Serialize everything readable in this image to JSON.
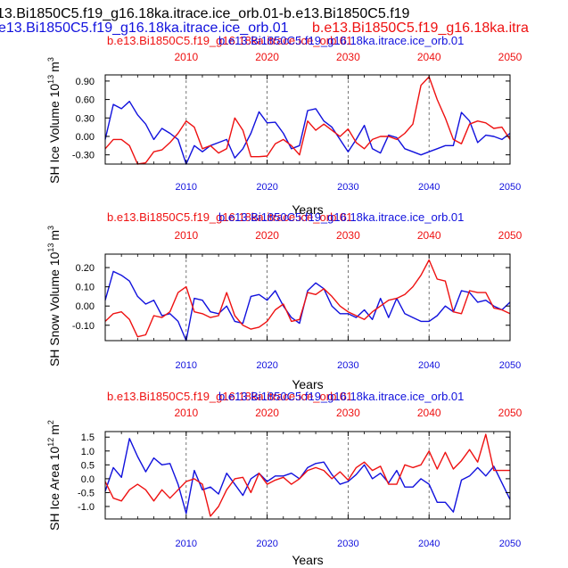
{
  "figure": {
    "header_black": "13.Bi1850C5.f19_g16.18ka.itrace.ice_orb.01-b.e13.Bi1850C5.f19",
    "header_blue": "e13.Bi1850C5.f19_g16.18ka.itrace.ice_orb.01",
    "header_red": "b.e13.Bi1850C5.f19_g16.18ka.itra"
  },
  "colors": {
    "red": "#ee1111",
    "blue": "#1111dd",
    "black": "#000000",
    "grid": "#555555"
  },
  "chart_data": [
    {
      "type": "line",
      "title_red": "b.e13.Bi1850C5.f19_g16.18ka.itrace.ice_orb.01",
      "title_blue": "b.e13.Bi1850C5.f19_g16.18ka.itrace.ice_orb.01",
      "ylabel": "SH Ice Volume 10^13 m^3",
      "ylabel_main": "SH Ice Volume 10",
      "ylabel_exp": "13",
      "ylabel_unit": "m",
      "ylabel_unit_exp": "3",
      "xlabel": "Years",
      "xlim": [
        2000,
        2050
      ],
      "ylim": [
        -0.45,
        1.0
      ],
      "yticks": [
        "0.90",
        "0.60",
        "0.30",
        "0.00",
        "-0.30"
      ],
      "ytick_values": [
        0.9,
        0.6,
        0.3,
        0.0,
        -0.3
      ],
      "xtick_values": [
        2010,
        2020,
        2030,
        2040,
        2050
      ],
      "xticks_bottom": [
        "2010",
        "2020",
        "2030",
        "2040",
        "2050"
      ],
      "xticks_top": [
        "2010",
        "2020",
        "2030",
        "2040",
        "2050"
      ],
      "gridlines_x": [
        2010,
        2020,
        2030,
        2040
      ],
      "x": [
        2000,
        2001,
        2002,
        2003,
        2004,
        2005,
        2006,
        2007,
        2008,
        2009,
        2010,
        2011,
        2012,
        2013,
        2014,
        2015,
        2016,
        2017,
        2018,
        2019,
        2020,
        2021,
        2022,
        2023,
        2024,
        2025,
        2026,
        2027,
        2028,
        2029,
        2030,
        2031,
        2032,
        2033,
        2034,
        2035,
        2036,
        2037,
        2038,
        2039,
        2040,
        2041,
        2042,
        2043,
        2044,
        2045,
        2046,
        2047,
        2048,
        2049,
        2050
      ],
      "series": [
        {
          "name": "blue",
          "color": "blue",
          "values": [
            -0.05,
            0.52,
            0.45,
            0.57,
            0.35,
            0.2,
            -0.05,
            0.13,
            0.05,
            -0.05,
            -0.45,
            -0.15,
            -0.25,
            -0.15,
            -0.1,
            -0.05,
            -0.35,
            -0.2,
            0.05,
            0.4,
            0.22,
            0.23,
            0.05,
            -0.2,
            -0.15,
            0.42,
            0.45,
            0.25,
            0.15,
            -0.05,
            -0.25,
            -0.05,
            0.18,
            -0.2,
            -0.27,
            0.02,
            -0.02,
            -0.2,
            -0.25,
            -0.3,
            -0.25,
            -0.2,
            -0.15,
            -0.15,
            0.39,
            0.25,
            -0.1,
            0.02,
            0.0,
            -0.05,
            0.05
          ]
        },
        {
          "name": "red",
          "color": "red",
          "values": [
            -0.2,
            -0.05,
            -0.05,
            -0.15,
            -0.45,
            -0.43,
            -0.25,
            -0.22,
            -0.1,
            0.05,
            0.25,
            0.15,
            -0.2,
            -0.15,
            -0.27,
            -0.2,
            0.3,
            0.1,
            -0.33,
            -0.33,
            -0.32,
            -0.12,
            -0.05,
            -0.15,
            -0.3,
            0.25,
            0.1,
            0.2,
            0.1,
            0.0,
            0.12,
            -0.1,
            -0.2,
            -0.05,
            0.0,
            0.0,
            -0.05,
            0.05,
            0.2,
            0.83,
            0.97,
            0.6,
            0.3,
            -0.05,
            -0.12,
            0.2,
            0.25,
            0.22,
            0.13,
            0.15,
            -0.05
          ]
        }
      ]
    },
    {
      "type": "line",
      "title_red": "b.e13.Bi1850C5.f19_g16.18ka.itrace.ice_orb.01",
      "title_blue": "b.e13.Bi1850C5.f19_g16.18ka.itrace.ice_orb.01",
      "ylabel": "SH Snow Volume 10^13 m^3",
      "ylabel_main": "SH Snow Volume 10",
      "ylabel_exp": "13",
      "ylabel_unit": "m",
      "ylabel_unit_exp": "3",
      "xlabel": "Years",
      "xlim": [
        2000,
        2050
      ],
      "ylim": [
        -0.18,
        0.27
      ],
      "yticks": [
        "0.20",
        "0.10",
        "0.00",
        "-0.10"
      ],
      "ytick_values": [
        0.2,
        0.1,
        0.0,
        -0.1
      ],
      "xtick_values": [
        2010,
        2020,
        2030,
        2040,
        2050
      ],
      "xticks_bottom": [
        "2010",
        "2020",
        "2030",
        "2040",
        "2050"
      ],
      "xticks_top": [
        "2010",
        "2020",
        "2030",
        "2040",
        "2050"
      ],
      "gridlines_x": [
        2010,
        2020,
        2030,
        2040
      ],
      "x": [
        2000,
        2001,
        2002,
        2003,
        2004,
        2005,
        2006,
        2007,
        2008,
        2009,
        2010,
        2011,
        2012,
        2013,
        2014,
        2015,
        2016,
        2017,
        2018,
        2019,
        2020,
        2021,
        2022,
        2023,
        2024,
        2025,
        2026,
        2027,
        2028,
        2029,
        2030,
        2031,
        2032,
        2033,
        2034,
        2035,
        2036,
        2037,
        2038,
        2039,
        2040,
        2041,
        2042,
        2043,
        2044,
        2045,
        2046,
        2047,
        2048,
        2049,
        2050
      ],
      "series": [
        {
          "name": "blue",
          "color": "blue",
          "values": [
            0.03,
            0.18,
            0.16,
            0.13,
            0.05,
            0.01,
            0.03,
            -0.05,
            -0.04,
            -0.08,
            -0.18,
            0.04,
            0.03,
            -0.03,
            -0.04,
            0.0,
            -0.08,
            -0.09,
            0.05,
            0.06,
            0.03,
            0.08,
            0.0,
            -0.06,
            -0.09,
            0.08,
            0.12,
            0.09,
            0.0,
            -0.04,
            -0.04,
            -0.06,
            -0.02,
            -0.07,
            0.04,
            -0.06,
            0.04,
            -0.04,
            -0.06,
            -0.08,
            -0.08,
            -0.05,
            0.0,
            -0.03,
            0.08,
            0.07,
            0.02,
            0.03,
            0.0,
            -0.02,
            0.02
          ]
        },
        {
          "name": "red",
          "color": "red",
          "values": [
            -0.08,
            -0.04,
            -0.03,
            -0.07,
            -0.16,
            -0.15,
            -0.05,
            -0.06,
            -0.03,
            0.07,
            0.1,
            -0.03,
            -0.04,
            -0.06,
            -0.05,
            0.07,
            -0.05,
            -0.1,
            -0.12,
            -0.11,
            -0.08,
            -0.02,
            0.01,
            -0.08,
            -0.07,
            0.07,
            0.06,
            0.09,
            0.05,
            0.0,
            -0.03,
            -0.05,
            -0.07,
            -0.03,
            0.0,
            0.03,
            0.04,
            0.06,
            0.1,
            0.16,
            0.24,
            0.14,
            0.13,
            -0.03,
            -0.04,
            0.08,
            0.07,
            0.07,
            -0.01,
            -0.02,
            -0.04
          ]
        }
      ]
    },
    {
      "type": "line",
      "title_red": "b.e13.Bi1850C5.f19_g16.18ka.itrace.ice_orb.01",
      "title_blue": "b.e13.Bi1850C5.f19_g16.18ka.itrace.ice_orb.01",
      "ylabel": "SH Ice Area 10^12 m^2",
      "ylabel_main": "SH Ice Area 10",
      "ylabel_exp": "12",
      "ylabel_unit": "m",
      "ylabel_unit_exp": "2",
      "xlabel": "Years",
      "xlim": [
        2000,
        2050
      ],
      "ylim": [
        -1.45,
        1.7
      ],
      "yticks": [
        "1.5",
        "1.0",
        "0.5",
        "0.0",
        "-0.5",
        "-1.0"
      ],
      "ytick_values": [
        1.5,
        1.0,
        0.5,
        0.0,
        -0.5,
        -1.0
      ],
      "xtick_values": [
        2010,
        2020,
        2030,
        2040,
        2050
      ],
      "xticks_bottom": [
        "2010",
        "2020",
        "2030",
        "2040",
        "2050"
      ],
      "xticks_top": [
        "2010",
        "2020",
        "2030",
        "2040",
        "2050"
      ],
      "gridlines_x": [
        2010,
        2020,
        2030,
        2040
      ],
      "x": [
        2000,
        2001,
        2002,
        2003,
        2004,
        2005,
        2006,
        2007,
        2008,
        2009,
        2010,
        2011,
        2012,
        2013,
        2014,
        2015,
        2016,
        2017,
        2018,
        2019,
        2020,
        2021,
        2022,
        2023,
        2024,
        2025,
        2026,
        2027,
        2028,
        2029,
        2030,
        2031,
        2032,
        2033,
        2034,
        2035,
        2036,
        2037,
        2038,
        2039,
        2040,
        2041,
        2042,
        2043,
        2044,
        2045,
        2046,
        2047,
        2048,
        2049,
        2050
      ],
      "series": [
        {
          "name": "blue",
          "color": "blue",
          "values": [
            -0.45,
            0.4,
            0.05,
            1.45,
            0.8,
            0.25,
            0.75,
            0.5,
            0.55,
            -0.2,
            -1.25,
            0.3,
            -0.4,
            -0.3,
            -0.55,
            0.2,
            -0.2,
            -0.6,
            0.0,
            0.2,
            -0.1,
            0.1,
            0.1,
            0.2,
            0.0,
            0.4,
            0.55,
            0.6,
            0.15,
            -0.2,
            -0.1,
            0.15,
            0.5,
            0.0,
            0.2,
            -0.15,
            0.3,
            -0.3,
            -0.3,
            0.0,
            -0.2,
            -0.85,
            -0.85,
            -1.2,
            -0.05,
            0.1,
            0.4,
            0.1,
            0.45,
            -0.15,
            -0.75
          ]
        },
        {
          "name": "red",
          "color": "red",
          "values": [
            -0.1,
            -0.7,
            -0.8,
            -0.4,
            -0.2,
            -0.4,
            -0.8,
            -0.4,
            -0.7,
            -0.4,
            -0.1,
            0.0,
            -0.2,
            -1.35,
            -1.0,
            -0.4,
            0.0,
            0.05,
            -0.5,
            0.2,
            -0.2,
            -0.05,
            0.05,
            -0.2,
            0.0,
            0.3,
            0.4,
            0.3,
            0.0,
            0.25,
            -0.05,
            0.4,
            0.6,
            0.3,
            0.45,
            -0.2,
            -0.2,
            0.5,
            0.4,
            0.5,
            1.0,
            0.35,
            0.95,
            0.35,
            0.65,
            1.05,
            0.6,
            1.6,
            0.3,
            0.3,
            0.3
          ]
        }
      ]
    }
  ]
}
